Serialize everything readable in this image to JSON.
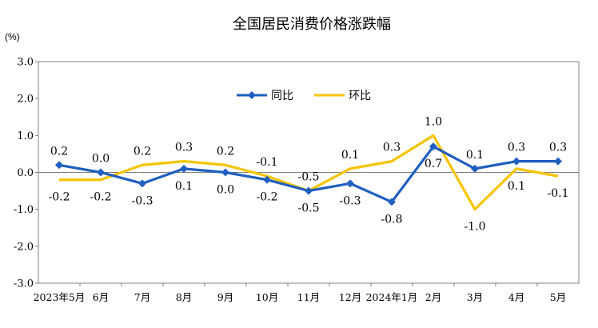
{
  "chart_data": {
    "type": "line",
    "title": "全国居民消费价格涨跌幅",
    "unit_label": "(%)",
    "categories": [
      "2023年5月",
      "6月",
      "7月",
      "8月",
      "9月",
      "10月",
      "11月",
      "12月",
      "2024年1月",
      "2月",
      "3月",
      "4月",
      "5月"
    ],
    "ylim": [
      -3.0,
      3.0
    ],
    "yticks": [
      "3.0",
      "2.0",
      "1.0",
      "0.0",
      "-1.0",
      "-2.0",
      "-3.0"
    ],
    "ytick_values": [
      3,
      2,
      1,
      0,
      -1,
      -2,
      -3
    ],
    "grid": false,
    "legend": "top-center",
    "series": [
      {
        "name": "同比",
        "color": "#1f5fbf",
        "marker": "diamond",
        "values": [
          0.2,
          0.0,
          -0.3,
          0.1,
          0.0,
          -0.2,
          -0.5,
          -0.3,
          -0.8,
          0.7,
          0.1,
          0.3,
          0.3
        ],
        "labels": [
          "0.2",
          "0.0",
          "-0.3",
          "0.1",
          "0.0",
          "-0.2",
          "-0.5",
          "-0.3",
          "-0.8",
          "0.7",
          "0.1",
          "0.3",
          "0.3"
        ],
        "label_pos": [
          "above",
          "above",
          "below",
          "below",
          "below",
          "below",
          "below",
          "below",
          "below",
          "below",
          "above",
          "above",
          "above"
        ]
      },
      {
        "name": "环比",
        "color": "#f5c400",
        "marker": "none",
        "values": [
          -0.2,
          -0.2,
          0.2,
          0.3,
          0.2,
          -0.1,
          -0.5,
          0.1,
          0.3,
          1.0,
          -1.0,
          0.1,
          -0.1
        ],
        "labels": [
          "-0.2",
          "-0.2",
          "0.2",
          "0.3",
          "0.2",
          "-0.1",
          "-0.5",
          "0.1",
          "0.3",
          "1.0",
          "-1.0",
          "0.1",
          "-0.1"
        ],
        "label_pos": [
          "below",
          "below",
          "above",
          "above",
          "above",
          "above",
          "above",
          "above",
          "above",
          "above",
          "below",
          "below",
          "below"
        ]
      }
    ]
  }
}
